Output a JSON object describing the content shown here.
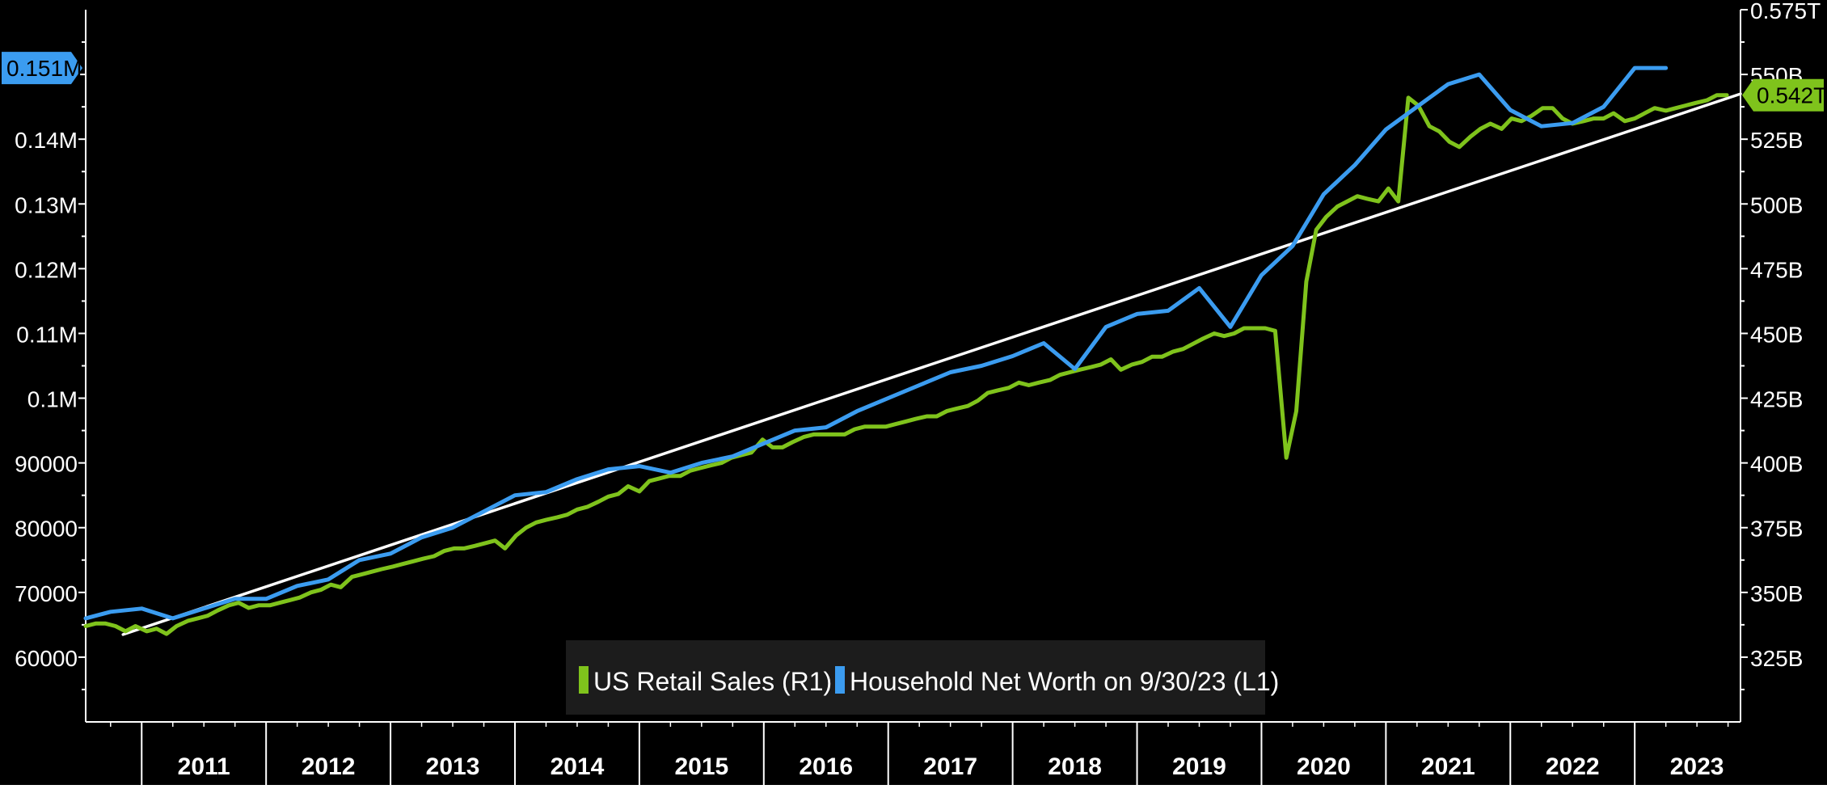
{
  "colors": {
    "background": "#000000",
    "axis": "#ffffff",
    "retail_sales": "#7fc31c",
    "net_worth": "#3b9cf0",
    "trend": "#ffffff",
    "legend_bg": "#1c1c1c"
  },
  "chart_data": {
    "type": "line",
    "title": "",
    "legend_placement": "bottom-center",
    "grid": false,
    "x_unit": "year (decimal)",
    "xlim": [
      2010.55,
      2023.85
    ],
    "x_tick_labels": [
      "2011",
      "2012",
      "2013",
      "2014",
      "2015",
      "2016",
      "2017",
      "2018",
      "2019",
      "2020",
      "2021",
      "2022",
      "2023"
    ],
    "left_axis": {
      "ylim": [
        50000,
        160000
      ],
      "tick_values": [
        60000,
        70000,
        80000,
        90000,
        100000,
        110000,
        120000,
        130000,
        140000
      ],
      "tick_labels": [
        "60000",
        "70000",
        "80000",
        "90000",
        "0.1M",
        "0.11M",
        "0.12M",
        "0.13M",
        "0.14M"
      ],
      "last_value_label": "0.151M",
      "last_value": 151000
    },
    "right_axis": {
      "ylim": [
        300000000000,
        575000000000
      ],
      "tick_values": [
        325000000000,
        350000000000,
        375000000000,
        400000000000,
        425000000000,
        450000000000,
        475000000000,
        500000000000,
        525000000000,
        550000000000,
        575000000000
      ],
      "tick_labels": [
        "325B",
        "350B",
        "375B",
        "400B",
        "425B",
        "450B",
        "475B",
        "500B",
        "525B",
        "550B",
        "0.575T"
      ],
      "last_value_label": "0.542T",
      "last_value": 542000000000
    },
    "series": [
      {
        "name": "US Retail Sales (R1)",
        "axis": "right",
        "color": "#7fc31c",
        "points": [
          [
            2010.55,
            337
          ],
          [
            2010.63,
            338
          ],
          [
            2010.71,
            338
          ],
          [
            2010.79,
            337
          ],
          [
            2010.87,
            335
          ],
          [
            2010.95,
            337
          ],
          [
            2011.04,
            335
          ],
          [
            2011.12,
            336
          ],
          [
            2011.2,
            334
          ],
          [
            2011.28,
            337
          ],
          [
            2011.37,
            339
          ],
          [
            2011.45,
            340
          ],
          [
            2011.53,
            341
          ],
          [
            2011.61,
            343
          ],
          [
            2011.7,
            345
          ],
          [
            2011.78,
            346
          ],
          [
            2011.86,
            344
          ],
          [
            2011.94,
            345
          ],
          [
            2012.03,
            345
          ],
          [
            2012.11,
            346
          ],
          [
            2012.19,
            347
          ],
          [
            2012.27,
            348
          ],
          [
            2012.36,
            350
          ],
          [
            2012.44,
            351
          ],
          [
            2012.52,
            353
          ],
          [
            2012.6,
            352
          ],
          [
            2012.69,
            356
          ],
          [
            2012.77,
            357
          ],
          [
            2012.85,
            358
          ],
          [
            2012.93,
            359
          ],
          [
            2013.02,
            360
          ],
          [
            2013.1,
            361
          ],
          [
            2013.18,
            362
          ],
          [
            2013.26,
            363
          ],
          [
            2013.35,
            364
          ],
          [
            2013.43,
            366
          ],
          [
            2013.51,
            367
          ],
          [
            2013.59,
            367
          ],
          [
            2013.68,
            368
          ],
          [
            2013.76,
            369
          ],
          [
            2013.84,
            370
          ],
          [
            2013.92,
            367
          ],
          [
            2014.01,
            372
          ],
          [
            2014.09,
            375
          ],
          [
            2014.17,
            377
          ],
          [
            2014.25,
            378
          ],
          [
            2014.34,
            379
          ],
          [
            2014.42,
            380
          ],
          [
            2014.5,
            382
          ],
          [
            2014.58,
            383
          ],
          [
            2014.67,
            385
          ],
          [
            2014.75,
            387
          ],
          [
            2014.83,
            388
          ],
          [
            2014.91,
            391
          ],
          [
            2015.0,
            389
          ],
          [
            2015.08,
            393
          ],
          [
            2015.16,
            394
          ],
          [
            2015.24,
            395
          ],
          [
            2015.33,
            395
          ],
          [
            2015.41,
            397
          ],
          [
            2015.49,
            398
          ],
          [
            2015.57,
            399
          ],
          [
            2015.66,
            400
          ],
          [
            2015.74,
            402
          ],
          [
            2015.82,
            403
          ],
          [
            2015.9,
            404
          ],
          [
            2015.99,
            409
          ],
          [
            2016.07,
            406
          ],
          [
            2016.15,
            406
          ],
          [
            2016.23,
            408
          ],
          [
            2016.32,
            410
          ],
          [
            2016.4,
            411
          ],
          [
            2016.48,
            411
          ],
          [
            2016.56,
            411
          ],
          [
            2016.65,
            411
          ],
          [
            2016.73,
            413
          ],
          [
            2016.81,
            414
          ],
          [
            2016.89,
            414
          ],
          [
            2016.98,
            414
          ],
          [
            2017.06,
            415
          ],
          [
            2017.14,
            416
          ],
          [
            2017.22,
            417
          ],
          [
            2017.31,
            418
          ],
          [
            2017.39,
            418
          ],
          [
            2017.47,
            420
          ],
          [
            2017.55,
            421
          ],
          [
            2017.64,
            422
          ],
          [
            2017.72,
            424
          ],
          [
            2017.8,
            427
          ],
          [
            2017.88,
            428
          ],
          [
            2017.97,
            429
          ],
          [
            2018.05,
            431
          ],
          [
            2018.13,
            430
          ],
          [
            2018.21,
            431
          ],
          [
            2018.3,
            432
          ],
          [
            2018.38,
            434
          ],
          [
            2018.46,
            435
          ],
          [
            2018.54,
            436
          ],
          [
            2018.63,
            437
          ],
          [
            2018.71,
            438
          ],
          [
            2018.79,
            440
          ],
          [
            2018.87,
            436
          ],
          [
            2018.96,
            438
          ],
          [
            2019.04,
            439
          ],
          [
            2019.12,
            441
          ],
          [
            2019.2,
            441
          ],
          [
            2019.29,
            443
          ],
          [
            2019.37,
            444
          ],
          [
            2019.45,
            446
          ],
          [
            2019.53,
            448
          ],
          [
            2019.62,
            450
          ],
          [
            2019.7,
            449
          ],
          [
            2019.78,
            450
          ],
          [
            2019.86,
            452
          ],
          [
            2019.95,
            452
          ],
          [
            2020.03,
            452
          ],
          [
            2020.11,
            451
          ],
          [
            2020.2,
            402
          ],
          [
            2020.28,
            420
          ],
          [
            2020.36,
            470
          ],
          [
            2020.44,
            490
          ],
          [
            2020.52,
            495
          ],
          [
            2020.61,
            499
          ],
          [
            2020.69,
            501
          ],
          [
            2020.77,
            503
          ],
          [
            2020.85,
            502
          ],
          [
            2020.94,
            501
          ],
          [
            2021.02,
            506
          ],
          [
            2021.1,
            501
          ],
          [
            2021.18,
            541
          ],
          [
            2021.26,
            538
          ],
          [
            2021.35,
            530
          ],
          [
            2021.43,
            528
          ],
          [
            2021.51,
            524
          ],
          [
            2021.59,
            522
          ],
          [
            2021.68,
            526
          ],
          [
            2021.76,
            529
          ],
          [
            2021.84,
            531
          ],
          [
            2021.93,
            529
          ],
          [
            2022.01,
            533
          ],
          [
            2022.09,
            532
          ],
          [
            2022.17,
            534
          ],
          [
            2022.26,
            537
          ],
          [
            2022.34,
            537
          ],
          [
            2022.42,
            533
          ],
          [
            2022.5,
            531
          ],
          [
            2022.59,
            532
          ],
          [
            2022.67,
            533
          ],
          [
            2022.75,
            533
          ],
          [
            2022.83,
            535
          ],
          [
            2022.92,
            532
          ],
          [
            2023.0,
            533
          ],
          [
            2023.08,
            535
          ],
          [
            2023.16,
            537
          ],
          [
            2023.25,
            536
          ],
          [
            2023.33,
            537
          ],
          [
            2023.41,
            538
          ],
          [
            2023.49,
            539
          ],
          [
            2023.58,
            540
          ],
          [
            2023.66,
            542
          ],
          [
            2023.74,
            542
          ]
        ]
      },
      {
        "name": "Household Net Worth on 9/30/23 (L1)",
        "axis": "left",
        "color": "#3b9cf0",
        "points": [
          [
            2010.55,
            66000
          ],
          [
            2010.75,
            67000
          ],
          [
            2011.0,
            67500
          ],
          [
            2011.25,
            66000
          ],
          [
            2011.5,
            67500
          ],
          [
            2011.75,
            69000
          ],
          [
            2012.0,
            69000
          ],
          [
            2012.25,
            71000
          ],
          [
            2012.5,
            72000
          ],
          [
            2012.75,
            75000
          ],
          [
            2013.0,
            76000
          ],
          [
            2013.25,
            78500
          ],
          [
            2013.5,
            80000
          ],
          [
            2013.75,
            82500
          ],
          [
            2014.0,
            85000
          ],
          [
            2014.25,
            85500
          ],
          [
            2014.5,
            87500
          ],
          [
            2014.75,
            89000
          ],
          [
            2015.0,
            89500
          ],
          [
            2015.25,
            88500
          ],
          [
            2015.5,
            90000
          ],
          [
            2015.75,
            91000
          ],
          [
            2016.0,
            93000
          ],
          [
            2016.25,
            95000
          ],
          [
            2016.5,
            95500
          ],
          [
            2016.75,
            98000
          ],
          [
            2017.0,
            100000
          ],
          [
            2017.25,
            102000
          ],
          [
            2017.5,
            104000
          ],
          [
            2017.75,
            105000
          ],
          [
            2018.0,
            106500
          ],
          [
            2018.25,
            108500
          ],
          [
            2018.5,
            104500
          ],
          [
            2018.75,
            111000
          ],
          [
            2019.0,
            113000
          ],
          [
            2019.25,
            113500
          ],
          [
            2019.5,
            117000
          ],
          [
            2019.75,
            111000
          ],
          [
            2020.0,
            119000
          ],
          [
            2020.25,
            123500
          ],
          [
            2020.5,
            131500
          ],
          [
            2020.75,
            136000
          ],
          [
            2021.0,
            141500
          ],
          [
            2021.25,
            145000
          ],
          [
            2021.5,
            148500
          ],
          [
            2021.75,
            150000
          ],
          [
            2022.0,
            144500
          ],
          [
            2022.25,
            142000
          ],
          [
            2022.5,
            142500
          ],
          [
            2022.75,
            145000
          ],
          [
            2023.0,
            151000
          ],
          [
            2023.25,
            151000
          ]
        ]
      },
      {
        "name": "",
        "kind": "trend",
        "axis": "left",
        "color": "#ffffff",
        "points": [
          [
            2010.85,
            63500
          ],
          [
            2023.85,
            147000
          ]
        ]
      }
    ]
  }
}
